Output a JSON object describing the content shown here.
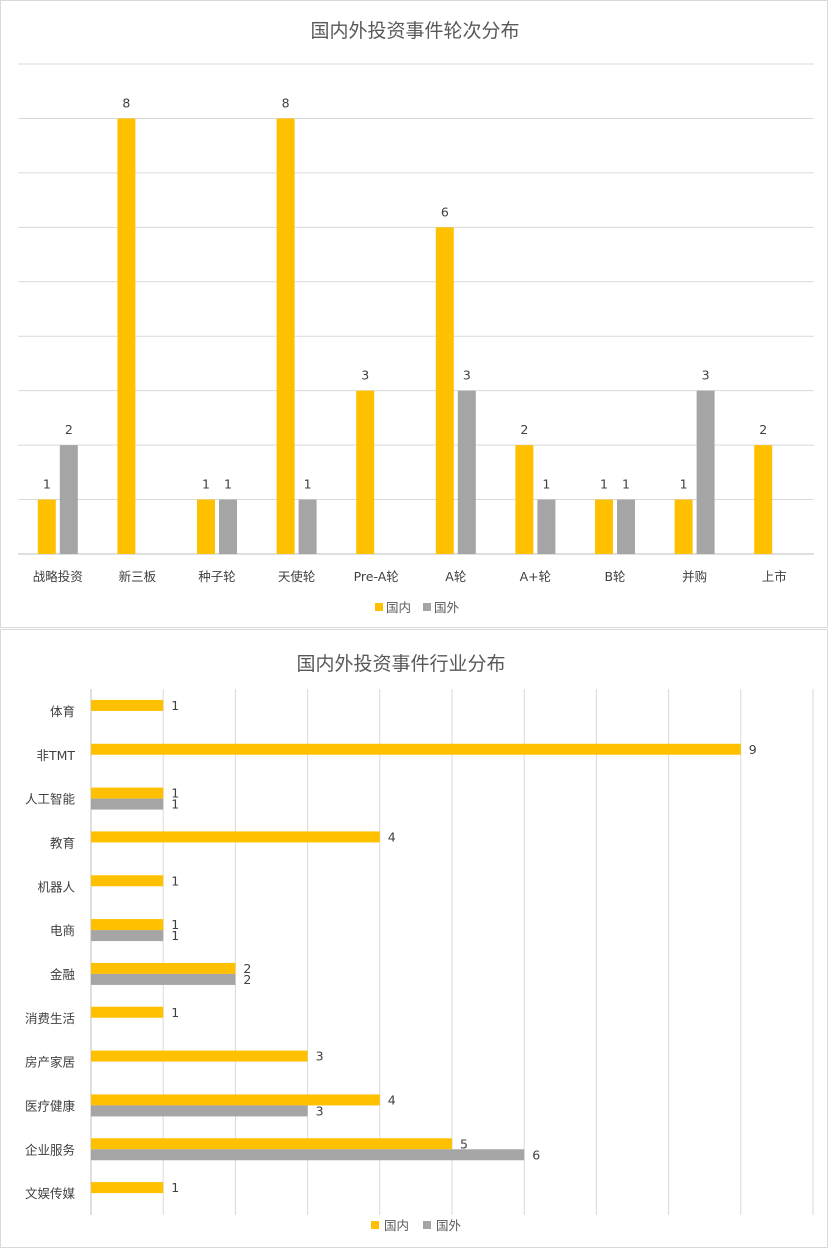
{
  "chart_data": [
    {
      "type": "bar",
      "orientation": "vertical",
      "title": "国内外投资事件轮次分布",
      "categories": [
        "战略投资",
        "新三板",
        "种子轮",
        "天使轮",
        "Pre-A轮",
        "A轮",
        "A+轮",
        "B轮",
        "并购",
        "上市"
      ],
      "series": [
        {
          "name": "国内",
          "color": "#FFC000",
          "values": [
            1,
            8,
            1,
            8,
            3,
            6,
            2,
            1,
            1,
            2
          ]
        },
        {
          "name": "国外",
          "color": "#A5A5A5",
          "values": [
            2,
            null,
            1,
            1,
            null,
            3,
            1,
            1,
            3,
            null
          ]
        }
      ],
      "ylim": [
        0,
        9
      ],
      "grid": true,
      "legend_position": "bottom"
    },
    {
      "type": "bar",
      "orientation": "horizontal",
      "title": "国内外投资事件行业分布",
      "categories": [
        "体育",
        "非TMT",
        "人工智能",
        "教育",
        "机器人",
        "电商",
        "金融",
        "消费生活",
        "房产家居",
        "医疗健康",
        "企业服务",
        "文娱传媒"
      ],
      "series": [
        {
          "name": "国内",
          "color": "#FFC000",
          "values": [
            1,
            9,
            1,
            4,
            1,
            1,
            2,
            1,
            3,
            4,
            5,
            1
          ]
        },
        {
          "name": "国外",
          "color": "#A5A5A5",
          "values": [
            null,
            null,
            1,
            null,
            null,
            1,
            2,
            null,
            null,
            3,
            6,
            null
          ]
        }
      ],
      "xlim": [
        0,
        10
      ],
      "grid": true,
      "legend_position": "bottom"
    }
  ]
}
